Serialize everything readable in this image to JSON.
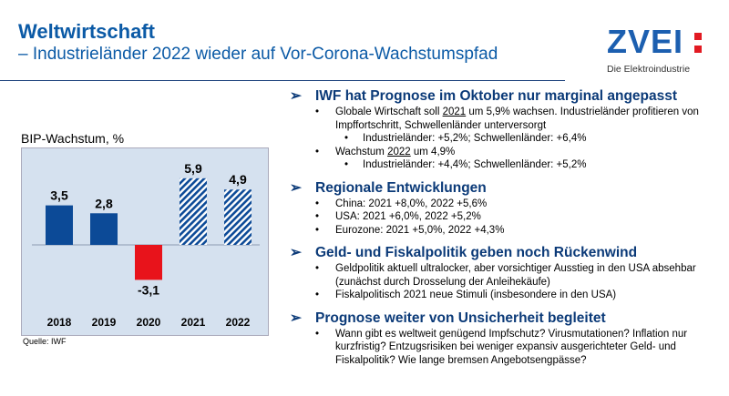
{
  "header": {
    "title": "Weltwirtschaft",
    "subtitle": "– Industrieländer 2022 wieder auf Vor-Corona-Wachstumspfad"
  },
  "logo": {
    "word": "ZVEI",
    "tagline": "Die Elektroindustrie",
    "colors": {
      "blue": "#1c5fb0",
      "red": "#e21a22"
    }
  },
  "chart_data": {
    "type": "bar",
    "title": "BIP-Wachstum, %",
    "categories": [
      "2018",
      "2019",
      "2020",
      "2021",
      "2022"
    ],
    "values": [
      3.5,
      2.8,
      -3.1,
      5.9,
      4.9
    ],
    "value_labels": [
      "3,5",
      "2,8",
      "-3,1",
      "5,9",
      "4,9"
    ],
    "styles": [
      "solid",
      "solid",
      "negative",
      "hatched",
      "hatched"
    ],
    "ylim": [
      -5,
      8
    ],
    "grid": false,
    "colors": {
      "solid": "#0c4a97",
      "negative": "#e8131b",
      "hatched": "#0c4a97",
      "background": "#d5e1ef"
    },
    "source": "Quelle: IWF"
  },
  "sections": [
    {
      "heading": "IWF hat Prognose im Oktober nur marginal angepasst",
      "bullets": [
        {
          "pre": "Globale Wirtschaft soll ",
          "u": "2021",
          "post": " um 5,9% wachsen. Industrieländer profitieren von Impffortschritt, Schwellenländer unterversorgt",
          "sub": [
            "Industrieländer: +5,2%; Schwellenländer: +6,4%"
          ]
        },
        {
          "pre": "Wachstum ",
          "u": "2022",
          "post": " um 4,9%",
          "sub": [
            "Industrieländer: +4,4%; Schwellenländer: +5,2%"
          ]
        }
      ]
    },
    {
      "heading": "Regionale Entwicklungen",
      "bullets": [
        {
          "text": "China: 2021 +8,0%, 2022 +5,6%"
        },
        {
          "text": "USA: 2021 +6,0%, 2022 +5,2%"
        },
        {
          "text": "Eurozone: 2021 +5,0%, 2022 +4,3%"
        }
      ]
    },
    {
      "heading": "Geld- und Fiskalpolitik geben noch Rückenwind",
      "bullets": [
        {
          "text": "Geldpolitik aktuell ultralocker, aber vorsichtiger Ausstieg in den USA absehbar (zunächst durch Drosselung der Anleihekäufe)"
        },
        {
          "text": "Fiskalpolitisch 2021 neue Stimuli (insbesondere in den USA)"
        }
      ]
    },
    {
      "heading": "Prognose weiter von Unsicherheit begleitet",
      "bullets": [
        {
          "text": "Wann gibt es weltweit genügend Impfschutz? Virusmutationen? Inflation nur kurzfristig? Entzugsrisiken bei weniger expansiv ausgerichteter Geld- und Fiskalpolitik? Wie lange bremsen Angebotsengpässe?"
        }
      ]
    }
  ]
}
